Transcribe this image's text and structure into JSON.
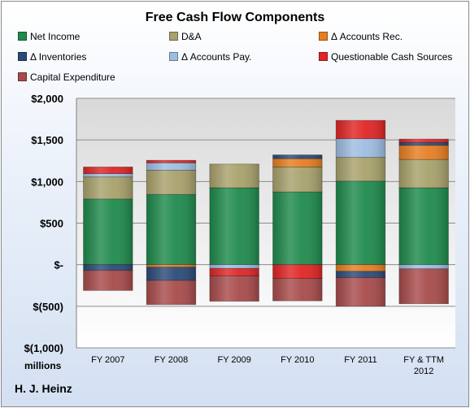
{
  "chart_data": {
    "type": "bar",
    "stacked": true,
    "title": "Free Cash Flow Components",
    "units_label": "millions",
    "company": "H. J. Heinz",
    "categories": [
      "FY 2007",
      "FY 2008",
      "FY 2009",
      "FY 2010",
      "FY 2011",
      "FY & TTM 2012"
    ],
    "ylim": [
      -1000,
      2000
    ],
    "yticks": [
      -1000,
      -500,
      0,
      500,
      1000,
      1500,
      2000
    ],
    "ytick_labels": [
      "$(1,000)",
      "$(500)",
      "$-",
      "$500",
      "$1,000",
      "$1,500",
      "$2,000"
    ],
    "grid": true,
    "legend_position": "top",
    "series": [
      {
        "name": "Net Income",
        "color": "#1f8a4c",
        "values": [
          790,
          845,
          925,
          875,
          1005,
          925
        ]
      },
      {
        "name": "D&A",
        "color": "#a8a16c",
        "values": [
          265,
          290,
          285,
          300,
          285,
          340
        ]
      },
      {
        "name": "Δ Accounts Rec.",
        "color": "#e67e22",
        "values": [
          0,
          -30,
          0,
          100,
          -80,
          170
        ]
      },
      {
        "name": "Δ Inventories",
        "color": "#2c4a78",
        "values": [
          -70,
          -160,
          0,
          45,
          -75,
          35
        ]
      },
      {
        "name": "Δ Accounts Pay.",
        "color": "#9dbde0",
        "values": [
          40,
          90,
          -45,
          0,
          225,
          -50
        ]
      },
      {
        "name": "Questionable Cash Sources",
        "color": "#e02525",
        "values": [
          80,
          30,
          -90,
          -165,
          220,
          40
        ]
      },
      {
        "name": "Capital Expenditure",
        "color": "#a84b4b",
        "values": [
          -240,
          -290,
          -305,
          -270,
          -345,
          -420
        ]
      }
    ]
  }
}
